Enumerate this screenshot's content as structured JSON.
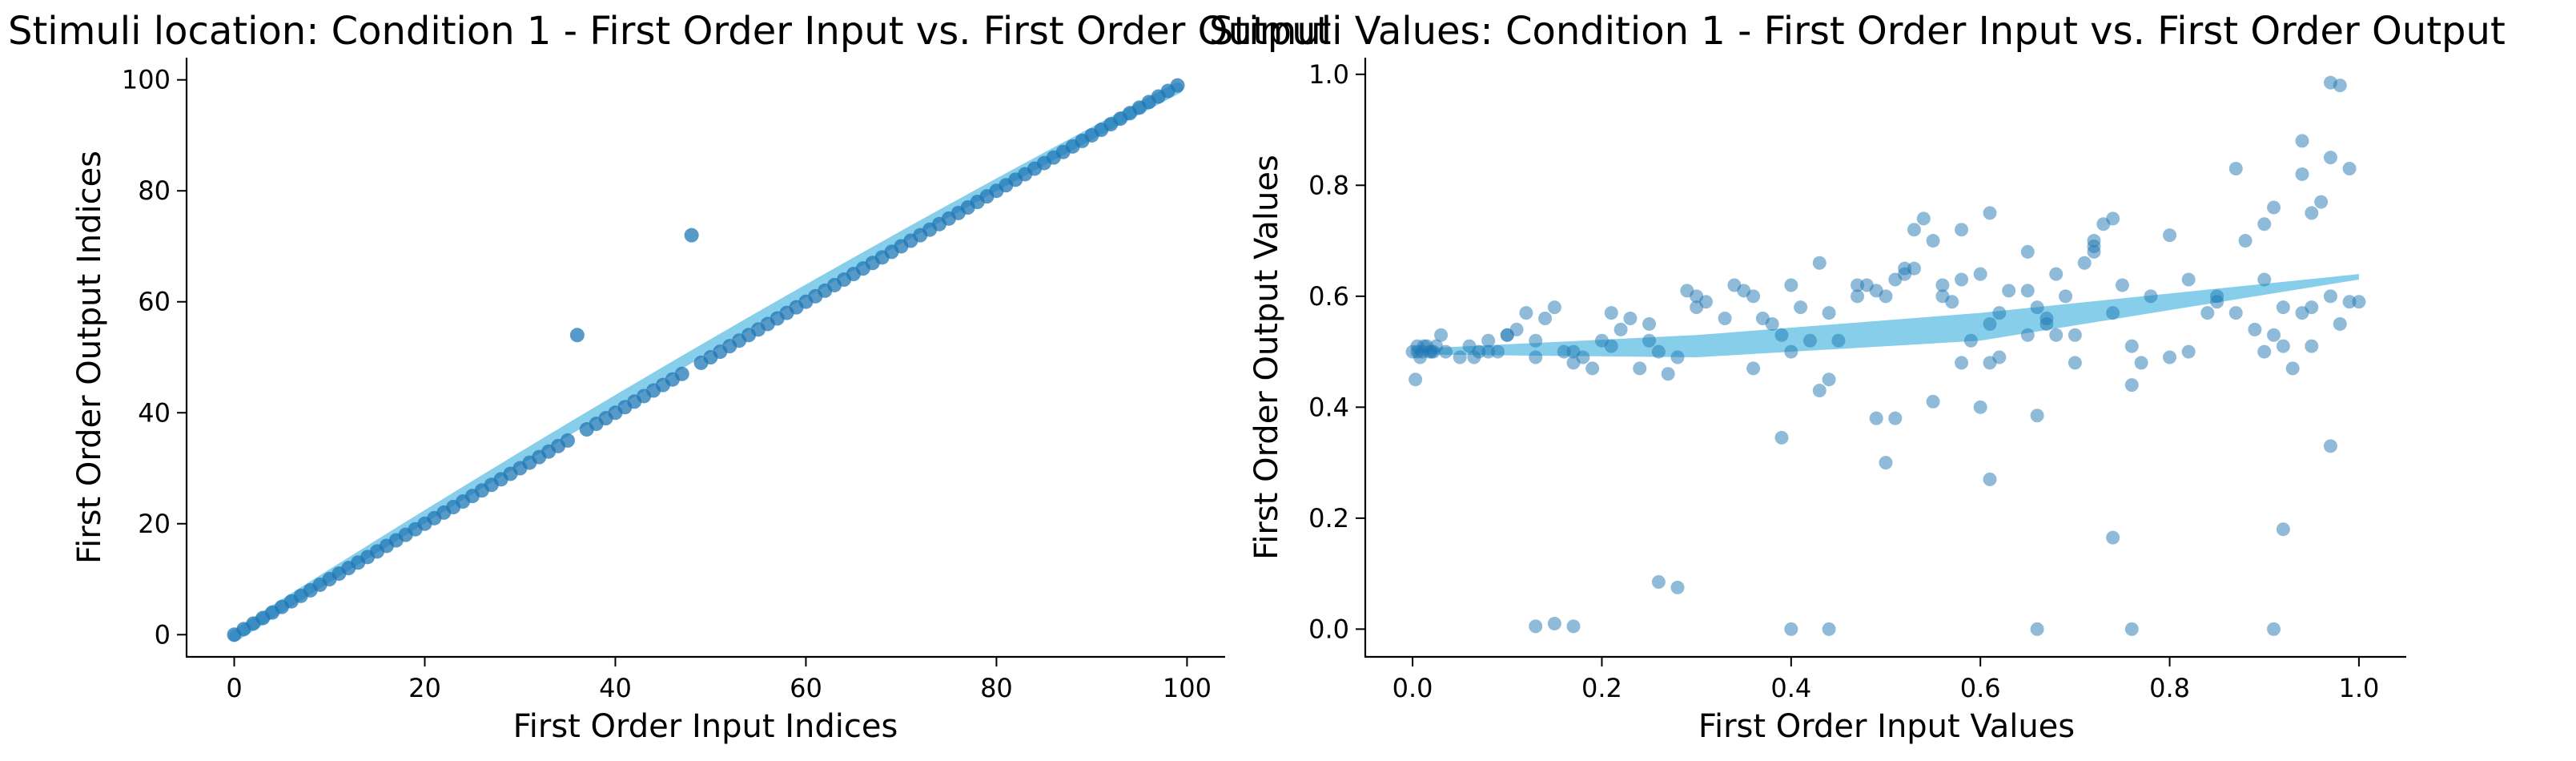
{
  "chart_data": [
    {
      "type": "scatter",
      "title": "Stimuli location: Condition 1 - First Order Input vs. First Order Output",
      "xlabel": "First Order Input Indices",
      "ylabel": "First Order Output Indices",
      "xlim": [
        -5,
        104
      ],
      "ylim": [
        -4,
        104
      ],
      "xticks": [
        0,
        20,
        40,
        60,
        80,
        100
      ],
      "yticks": [
        0,
        20,
        40,
        60,
        80,
        100
      ],
      "grid": false,
      "colors": {
        "points": "#1f77b4",
        "fit": "#87ceeb"
      },
      "fit": {
        "x_start": 0,
        "x_end": 99,
        "y_start": -0.3,
        "y_end": 98.5,
        "curvature": 2.5
      },
      "series": [
        {
          "x": [
            0,
            1,
            2,
            3,
            4,
            5,
            6,
            7,
            8,
            9,
            10,
            11,
            12,
            13,
            14,
            15,
            16,
            17,
            18,
            19,
            20,
            21,
            22,
            23,
            24,
            25,
            26,
            27,
            28,
            29,
            30,
            31,
            32,
            33,
            34,
            35,
            36,
            37,
            38,
            39,
            40,
            41,
            42,
            43,
            44,
            45,
            46,
            47,
            48,
            49,
            50,
            51,
            52,
            53,
            54,
            55,
            56,
            57,
            58,
            59,
            60,
            61,
            62,
            63,
            64,
            65,
            66,
            67,
            68,
            69,
            70,
            71,
            72,
            73,
            74,
            75,
            76,
            77,
            78,
            79,
            80,
            81,
            82,
            83,
            84,
            85,
            86,
            87,
            88,
            89,
            90,
            91,
            92,
            93,
            94,
            95,
            96,
            97,
            98,
            99
          ],
          "y": [
            0,
            1,
            2,
            3,
            4,
            5,
            6,
            7,
            8,
            9,
            10,
            11,
            12,
            13,
            14,
            15,
            16,
            17,
            18,
            19,
            20,
            21,
            22,
            23,
            24,
            25,
            26,
            27,
            28,
            29,
            30,
            31,
            32,
            33,
            34,
            35,
            54,
            37,
            38,
            39,
            40,
            41,
            42,
            43,
            44,
            45,
            46,
            47,
            72,
            49,
            50,
            51,
            52,
            53,
            54,
            55,
            56,
            57,
            58,
            59,
            60,
            61,
            62,
            63,
            64,
            65,
            66,
            67,
            68,
            69,
            70,
            71,
            72,
            73,
            74,
            75,
            76,
            77,
            78,
            79,
            80,
            81,
            82,
            83,
            84,
            85,
            86,
            87,
            88,
            89,
            90,
            91,
            92,
            93,
            94,
            95,
            96,
            97,
            98,
            99
          ]
        }
      ]
    },
    {
      "type": "scatter",
      "title": "Stimuli Values: Condition 1 - First Order Input vs. First Order Output",
      "xlabel": "First Order Input Values",
      "ylabel": "First Order Output Values",
      "xlim": [
        -0.05,
        1.05
      ],
      "ylim": [
        -0.05,
        1.03
      ],
      "xticks": [
        0.0,
        0.2,
        0.4,
        0.6,
        0.8,
        1.0
      ],
      "yticks": [
        0.0,
        0.2,
        0.4,
        0.6,
        0.8,
        1.0
      ],
      "grid": false,
      "colors": {
        "points": "#1f77b4",
        "fit": "#87ceeb"
      },
      "fit": {
        "upper": [
          [
            0,
            0.505
          ],
          [
            0.3,
            0.53
          ],
          [
            0.6,
            0.57
          ],
          [
            1.0,
            0.64
          ]
        ],
        "lower": [
          [
            0,
            0.495
          ],
          [
            0.3,
            0.49
          ],
          [
            0.6,
            0.52
          ],
          [
            1.0,
            0.63
          ]
        ]
      },
      "series": [
        {
          "x": [
            0.0,
            0.005,
            0.01,
            0.015,
            0.02,
            0.025,
            0.003,
            0.008,
            0.018,
            0.03,
            0.012,
            0.022,
            0.005,
            0.035,
            0.06,
            0.065,
            0.07,
            0.08,
            0.09,
            0.1,
            0.11,
            0.12,
            0.13,
            0.14,
            0.15,
            0.16,
            0.17,
            0.18,
            0.19,
            0.2,
            0.21,
            0.22,
            0.23,
            0.24,
            0.25,
            0.26,
            0.27,
            0.29,
            0.3,
            0.31,
            0.33,
            0.34,
            0.35,
            0.36,
            0.37,
            0.38,
            0.39,
            0.4,
            0.41,
            0.42,
            0.43,
            0.44,
            0.45,
            0.47,
            0.48,
            0.49,
            0.5,
            0.51,
            0.52,
            0.53,
            0.54,
            0.55,
            0.56,
            0.57,
            0.58,
            0.59,
            0.6,
            0.61,
            0.62,
            0.63,
            0.65,
            0.66,
            0.67,
            0.68,
            0.69,
            0.7,
            0.71,
            0.72,
            0.73,
            0.74,
            0.75,
            0.76,
            0.78,
            0.8,
            0.82,
            0.85,
            0.87,
            0.89,
            0.9,
            0.91,
            0.92,
            0.93,
            0.94,
            0.95,
            0.96,
            0.97,
            0.98,
            0.99,
            1.0,
            0.13,
            0.15,
            0.17,
            0.26,
            0.28,
            0.4,
            0.44,
            0.5,
            0.61,
            0.66,
            0.76,
            0.91,
            0.74,
            0.66,
            0.6,
            0.97,
            0.92,
            0.51,
            0.55,
            0.39,
            0.49,
            0.97,
            0.98,
            0.94,
            0.95,
            0.97,
            0.9,
            0.94,
            0.91,
            0.87,
            0.99,
            0.53,
            0.58,
            0.61,
            0.65,
            0.72,
            0.74,
            0.85,
            0.9,
            0.82,
            0.77,
            0.61,
            0.44,
            0.43,
            0.3,
            0.36,
            0.4,
            0.47,
            0.52,
            0.56,
            0.58,
            0.62,
            0.65,
            0.67,
            0.68,
            0.7,
            0.72,
            0.76,
            0.8,
            0.84,
            0.88,
            0.92,
            0.95,
            0.05,
            0.08,
            0.1,
            0.13,
            0.17,
            0.21,
            0.25,
            0.28
          ],
          "y": [
            0.5,
            0.5,
            0.5,
            0.51,
            0.5,
            0.51,
            0.45,
            0.49,
            0.5,
            0.53,
            0.51,
            0.5,
            0.51,
            0.5,
            0.51,
            0.49,
            0.5,
            0.52,
            0.5,
            0.53,
            0.54,
            0.57,
            0.52,
            0.56,
            0.58,
            0.5,
            0.48,
            0.49,
            0.47,
            0.52,
            0.57,
            0.54,
            0.56,
            0.47,
            0.52,
            0.5,
            0.46,
            0.61,
            0.58,
            0.59,
            0.56,
            0.62,
            0.61,
            0.6,
            0.56,
            0.55,
            0.53,
            0.62,
            0.58,
            0.52,
            0.66,
            0.57,
            0.52,
            0.6,
            0.62,
            0.61,
            0.6,
            0.63,
            0.65,
            0.72,
            0.74,
            0.7,
            0.62,
            0.59,
            0.63,
            0.52,
            0.64,
            0.55,
            0.57,
            0.61,
            0.53,
            0.58,
            0.55,
            0.64,
            0.6,
            0.53,
            0.66,
            0.7,
            0.73,
            0.57,
            0.62,
            0.51,
            0.6,
            0.71,
            0.63,
            0.59,
            0.57,
            0.54,
            0.5,
            0.53,
            0.58,
            0.47,
            0.57,
            0.51,
            0.77,
            0.6,
            0.55,
            0.59,
            0.59,
            0.005,
            0.01,
            0.005,
            0.085,
            0.075,
            0.0,
            0.0,
            0.3,
            0.27,
            0.0,
            0.0,
            0.0,
            0.165,
            0.385,
            0.4,
            0.33,
            0.18,
            0.38,
            0.41,
            0.345,
            0.38,
            0.985,
            0.98,
            0.88,
            0.75,
            0.85,
            0.73,
            0.82,
            0.76,
            0.83,
            0.83,
            0.65,
            0.72,
            0.75,
            0.68,
            0.68,
            0.74,
            0.6,
            0.63,
            0.5,
            0.48,
            0.48,
            0.45,
            0.43,
            0.6,
            0.47,
            0.5,
            0.62,
            0.64,
            0.6,
            0.48,
            0.49,
            0.61,
            0.56,
            0.53,
            0.48,
            0.69,
            0.44,
            0.49,
            0.57,
            0.7,
            0.51,
            0.58,
            0.49,
            0.5,
            0.53,
            0.49,
            0.5,
            0.51,
            0.55,
            0.49
          ]
        }
      ]
    }
  ]
}
